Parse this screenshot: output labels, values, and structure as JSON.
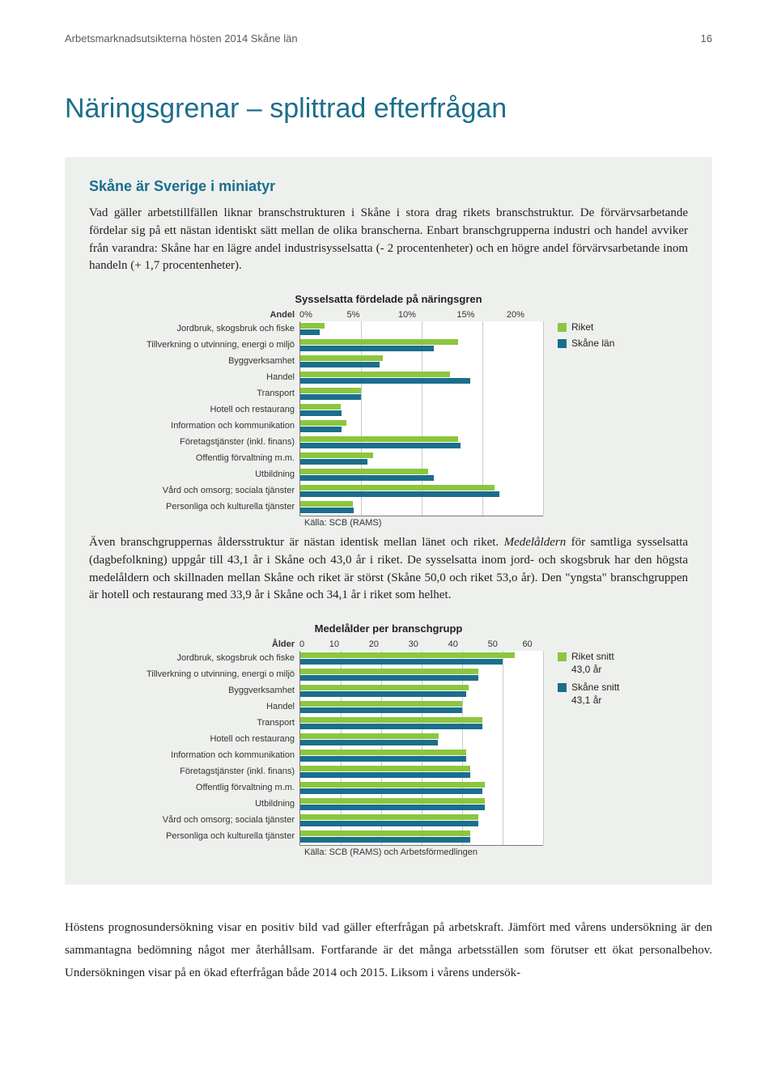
{
  "running_header": {
    "text": "Arbetsmarknadsutsikterna hösten 2014 Skåne län",
    "page": "16"
  },
  "main_heading": "Näringsgrenar – splittrad efterfrågan",
  "panel": {
    "heading": "Skåne är Sverige i miniatyr",
    "para1": "Vad gäller arbetstillfällen liknar branschstrukturen i Skåne i stora drag rikets branschstruktur. De förvärvsarbetande fördelar sig på ett nästan identiskt sätt mellan de olika branscherna. Enbart branschgrupperna industri och handel avviker från varandra: Skåne har en lägre andel industrisysselsatta (- 2 procentenheter) och en högre andel förvärvsarbetande inom handeln (+ 1,7 procentenheter).",
    "chart1": {
      "title": "Sysselsatta fördelade på näringsgren",
      "axis_label": "Andel",
      "xmax": 20,
      "ticks": [
        "0%",
        "5%",
        "10%",
        "15%",
        "20%"
      ],
      "categories": [
        "Jordbruk, skogsbruk och fiske",
        "Tillverkning o utvinning, energi o miljö",
        "Byggverksamhet",
        "Handel",
        "Transport",
        "Hotell och restaurang",
        "Information och kommunikation",
        "Företagstjänster (inkl. finans)",
        "Offentlig förvaltning m.m.",
        "Utbildning",
        "Vård och omsorg; sociala tjänster",
        "Personliga och kulturella tjänster"
      ],
      "riket": [
        2.0,
        13.0,
        6.8,
        12.3,
        5.0,
        3.3,
        3.8,
        13.0,
        6.0,
        10.5,
        16.0,
        4.3
      ],
      "skane": [
        1.6,
        11.0,
        6.5,
        14.0,
        5.0,
        3.4,
        3.4,
        13.2,
        5.5,
        11.0,
        16.4,
        4.4
      ],
      "colors": {
        "riket": "#8cc63f",
        "skane": "#1b6e8c",
        "bg": "#ffffff",
        "grid": "#c9c9c9"
      },
      "legend": [
        {
          "label": "Riket",
          "color": "#8cc63f"
        },
        {
          "label": "Skåne län",
          "color": "#1b6e8c"
        }
      ],
      "source": "Källa: SCB (RAMS)"
    },
    "para2_a": "Även branschgruppernas åldersstruktur är nästan identisk mellan länet och riket.",
    "para2_b": "Medelåldern",
    "para2_c": " för samtliga sysselsatta (dagbefolkning) uppgår till 43,1 år i Skåne och 43,0 år i riket. De sysselsatta inom jord- och skogsbruk har den högsta medelåldern och skillnaden mellan Skåne och riket är störst (Skåne 50,0 och riket 53,o år). Den \"yngsta\" branschgruppen är hotell och restaurang med 33,9 år i Skåne och 34,1 år i riket som helhet.",
    "chart2": {
      "title": "Medelålder per branschgrupp",
      "axis_label": "Ålder",
      "xmax": 60,
      "ticks": [
        "0",
        "10",
        "20",
        "30",
        "40",
        "50",
        "60"
      ],
      "categories": [
        "Jordbruk, skogsbruk och fiske",
        "Tillverkning o utvinning, energi o miljö",
        "Byggverksamhet",
        "Handel",
        "Transport",
        "Hotell och restaurang",
        "Information och kommunikation",
        "Företagstjänster (inkl. finans)",
        "Offentlig förvaltning m.m.",
        "Utbildning",
        "Vård och omsorg; sociala tjänster",
        "Personliga och kulturella tjänster"
      ],
      "riket": [
        53.0,
        44.0,
        41.5,
        40.0,
        45.0,
        34.1,
        41.0,
        42.0,
        45.5,
        45.5,
        44.0,
        42.0
      ],
      "skane": [
        50.0,
        44.0,
        41.0,
        40.0,
        45.0,
        33.9,
        41.0,
        42.0,
        45.0,
        45.5,
        44.0,
        42.0
      ],
      "colors": {
        "riket": "#8cc63f",
        "skane": "#1b6e8c",
        "bg": "#ffffff",
        "grid": "#c9c9c9"
      },
      "legend": [
        {
          "label": "Riket snitt",
          "sub": "43,0 år",
          "color": "#8cc63f"
        },
        {
          "label": "Skåne snitt",
          "sub": "43,1 år",
          "color": "#1b6e8c"
        }
      ],
      "source": "Källa: SCB (RAMS) och Arbetsförmedlingen"
    }
  },
  "footer_para": "Höstens prognosundersökning visar en positiv bild vad gäller efterfrågan på arbetskraft. Jämfört med vårens undersökning är den sammantagna bedömning något mer återhållsam. Fortfarande är det många arbetsställen som förutser ett ökat personalbehov. Undersökningen visar på en ökad efterfrågan både 2014 och 2015. Liksom i vårens undersök-"
}
